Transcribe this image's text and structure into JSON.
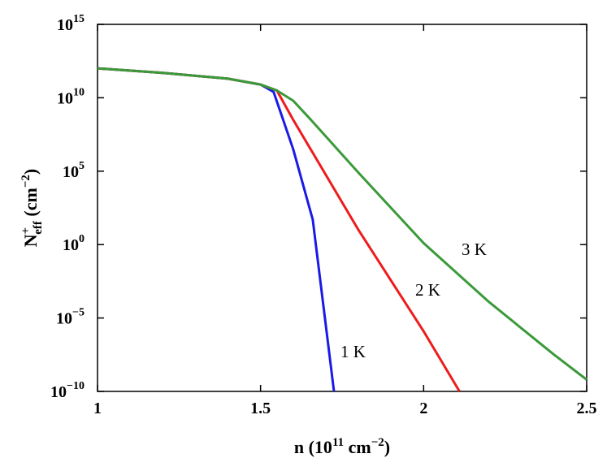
{
  "chart_data": {
    "type": "line",
    "xlabel": {
      "base": "n (10",
      "sup": "11",
      "mid": " cm",
      "sup2": "−2",
      "tail": ")"
    },
    "ylabel": {
      "base": "N",
      "sup": "+",
      "sub": "eff",
      "mid": " (cm",
      "sup2": "−2",
      "tail": ")"
    },
    "xlim": [
      1,
      2.5
    ],
    "ylim_log10": [
      -10,
      15
    ],
    "y_scale": "log",
    "grid": false,
    "x_ticks": [
      "1",
      "1.5",
      "2",
      "2.5"
    ],
    "x_tick_values": [
      1,
      1.5,
      2,
      2.5
    ],
    "y_ticks": [
      {
        "base": "10",
        "exp": "15",
        "value": 15
      },
      {
        "base": "10",
        "exp": "10",
        "value": 10
      },
      {
        "base": "10",
        "exp": "5",
        "value": 5
      },
      {
        "base": "10",
        "exp": "0",
        "value": 0
      },
      {
        "base": "10",
        "exp": "−5",
        "value": -5
      },
      {
        "base": "10",
        "exp": "−10",
        "value": -10
      }
    ],
    "series": [
      {
        "name": "1 K",
        "color": "#1a1ae6",
        "points_log10": [
          [
            1.0,
            12.0
          ],
          [
            1.2,
            11.7
          ],
          [
            1.4,
            11.3
          ],
          [
            1.5,
            10.9
          ],
          [
            1.54,
            10.4
          ],
          [
            1.6,
            6.5
          ],
          [
            1.66,
            1.7
          ],
          [
            1.725,
            -10.0
          ]
        ]
      },
      {
        "name": "2 K",
        "color": "#ee1c1c",
        "points_log10": [
          [
            1.0,
            12.0
          ],
          [
            1.2,
            11.7
          ],
          [
            1.4,
            11.3
          ],
          [
            1.5,
            10.9
          ],
          [
            1.55,
            10.5
          ],
          [
            1.6,
            8.5
          ],
          [
            1.8,
            1.0
          ],
          [
            2.0,
            -5.9
          ],
          [
            2.11,
            -10.0
          ]
        ]
      },
      {
        "name": "3 K",
        "color": "#3a9a3a",
        "points_log10": [
          [
            1.0,
            12.0
          ],
          [
            1.2,
            11.7
          ],
          [
            1.4,
            11.3
          ],
          [
            1.5,
            10.9
          ],
          [
            1.55,
            10.5
          ],
          [
            1.6,
            9.8
          ],
          [
            1.65,
            8.6
          ],
          [
            1.8,
            4.9
          ],
          [
            2.0,
            0.1
          ],
          [
            2.2,
            -3.9
          ],
          [
            2.4,
            -7.5
          ],
          [
            2.5,
            -9.2
          ]
        ]
      }
    ],
    "annotations": [
      {
        "text": "1 K",
        "series": "1 K"
      },
      {
        "text": "2 K",
        "series": "2 K"
      },
      {
        "text": "3 K",
        "series": "3 K"
      }
    ]
  }
}
